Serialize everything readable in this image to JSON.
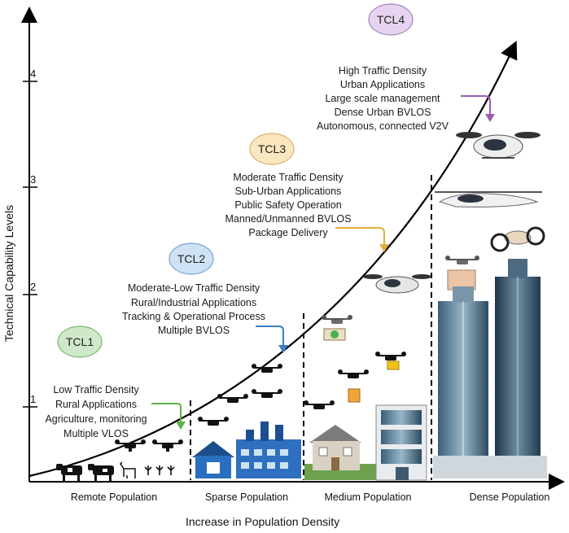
{
  "axes": {
    "y_title": "Technical Capability Levels",
    "x_title": "Increase in Population Density",
    "y_ticks": [
      "1",
      "2",
      "3",
      "4"
    ],
    "x_categories": [
      "Remote Population",
      "Sparse Population",
      "Medium Population",
      "Dense Population"
    ]
  },
  "levels": [
    {
      "badge": "TCL1",
      "color": "#cfe8c9",
      "border": "#7fb573",
      "lines": [
        "Low Traffic Density",
        "Rural Applications",
        "Agriculture, monitoring",
        "Multiple VLOS"
      ],
      "arrow_color": "#5db14b"
    },
    {
      "badge": "TCL2",
      "color": "#cfe2f5",
      "border": "#7aa4cf",
      "lines": [
        "Moderate-Low Traffic Density",
        "Rural/Industrial Applications",
        "Tracking & Operational Process",
        "Multiple BVLOS"
      ],
      "arrow_color": "#3d7fc4"
    },
    {
      "badge": "TCL3",
      "color": "#fbe7bf",
      "border": "#d6b46a",
      "lines": [
        "Moderate Traffic Density",
        "Sub-Urban Applications",
        "Public Safety Operation",
        "Manned/Unmanned BVLOS",
        "Package Delivery"
      ],
      "arrow_color": "#e0b03a"
    },
    {
      "badge": "TCL4",
      "color": "#e6d3ef",
      "border": "#a785bd",
      "lines": [
        "High Traffic Density",
        "Urban Applications",
        "Large scale management",
        "Dense Urban BVLOS",
        "Autonomous, connected V2V"
      ],
      "arrow_color": "#9a5db3"
    }
  ],
  "icons": [
    "cow-icon",
    "goat-icon",
    "crop-icon",
    "drone-icon",
    "factory-icon",
    "house-icon",
    "building-icon",
    "skyscraper-icon",
    "air-taxi-icon",
    "package-icon"
  ]
}
